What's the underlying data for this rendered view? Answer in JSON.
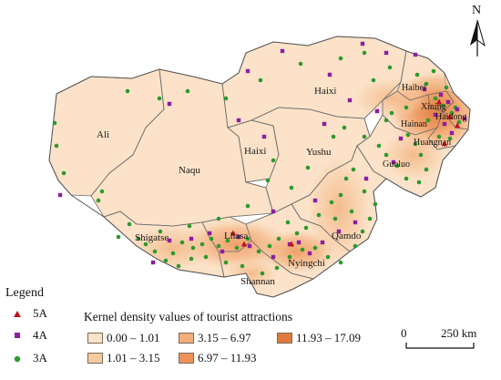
{
  "north_label": "N",
  "regions": [
    {
      "name": "Ali"
    },
    {
      "name": "Naqu"
    },
    {
      "name": "Haixi"
    },
    {
      "name": "Haixi"
    },
    {
      "name": "Yushu"
    },
    {
      "name": "Haibei"
    },
    {
      "name": "Xining"
    },
    {
      "name": "Haidong"
    },
    {
      "name": "Hainan"
    },
    {
      "name": "Huangnan"
    },
    {
      "name": "Guoluo"
    },
    {
      "name": "Qamdo"
    },
    {
      "name": "Shigatse"
    },
    {
      "name": "Lhasa"
    },
    {
      "name": "Nyingchi"
    },
    {
      "name": "Shannan"
    }
  ],
  "legend": {
    "title": "Legend",
    "items": [
      {
        "label": "5A",
        "color": "#c0141c",
        "shape": "triangle"
      },
      {
        "label": "4A",
        "color": "#8b1fa0",
        "shape": "square"
      },
      {
        "label": "3A",
        "color": "#2c9a2c",
        "shape": "circle"
      }
    ]
  },
  "density_legend": {
    "title": "Kernel density values of tourist attractions",
    "classes": [
      {
        "label": "0.00 – 1.01",
        "color": "#fbe2c8"
      },
      {
        "label": "1.01 – 3.15",
        "color": "#f7c9a0"
      },
      {
        "label": "3.15 – 6.97",
        "color": "#f2ad78"
      },
      {
        "label": "6.97 – 11.93",
        "color": "#ec9458"
      },
      {
        "label": "11.93 – 17.09",
        "color": "#e07a3a"
      }
    ]
  },
  "scale_bar": {
    "zero": "0",
    "distance": "250 km"
  }
}
